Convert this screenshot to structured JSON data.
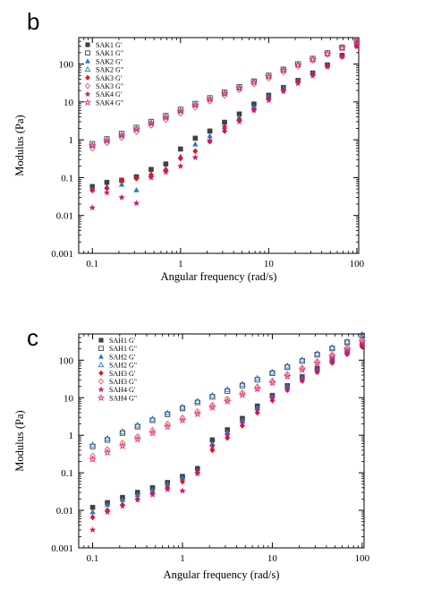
{
  "chart_data": [
    {
      "type": "scatter",
      "panel_label": "b",
      "xlabel": "Angular frequency (rad/s)",
      "ylabel": "Modulus (Pa)",
      "xscale": "log",
      "yscale": "log",
      "xlim": [
        0.07,
        105
      ],
      "ylim": [
        0.001,
        500
      ],
      "xticks": [
        0.1,
        1,
        10,
        100
      ],
      "xtick_labels": [
        "0.1",
        "1",
        "10",
        "100"
      ],
      "yticks": [
        0.001,
        0.01,
        0.1,
        1,
        10,
        100
      ],
      "ytick_labels": [
        "0.001",
        "0.01",
        "0.1",
        "1",
        "10",
        "100"
      ],
      "grid": false,
      "legend_position": "top-left",
      "series": [
        {
          "name": "SAK1 G'",
          "marker": "square-filled",
          "color": "#404040",
          "x": [
            0.1,
            0.146,
            0.215,
            0.316,
            0.464,
            0.681,
            1.0,
            1.47,
            2.15,
            3.16,
            4.64,
            6.81,
            10,
            14.7,
            21.5,
            31.6,
            46.4,
            68.1,
            100
          ],
          "y": [
            0.058,
            0.075,
            0.085,
            0.105,
            0.165,
            0.23,
            0.57,
            1.1,
            1.7,
            2.9,
            4.8,
            8.8,
            15,
            24,
            37,
            58,
            95,
            170,
            320
          ]
        },
        {
          "name": "SAK1 G\"",
          "marker": "square-open",
          "color": "#404040",
          "x": [
            0.1,
            0.146,
            0.215,
            0.316,
            0.464,
            0.681,
            1.0,
            1.47,
            2.15,
            3.16,
            4.64,
            6.81,
            10,
            14.7,
            21.5,
            31.6,
            46.4,
            68.1,
            100
          ],
          "y": [
            0.78,
            1.05,
            1.45,
            2.1,
            3.0,
            4.3,
            6.3,
            9.0,
            12.7,
            18,
            25,
            35,
            50,
            72,
            100,
            140,
            195,
            275,
            400
          ]
        },
        {
          "name": "SAK2 G'",
          "marker": "triangle-filled",
          "color": "#2477c9",
          "x": [
            0.1,
            0.146,
            0.215,
            0.316,
            0.464,
            0.681,
            1.0,
            1.47,
            2.15,
            3.16,
            4.64,
            6.81,
            10,
            14.7,
            21.5,
            31.6,
            46.4,
            68.1,
            100
          ],
          "y": [
            0.05,
            0.058,
            0.066,
            0.047,
            0.12,
            0.17,
            0.36,
            0.76,
            1.25,
            2.2,
            3.9,
            7.5,
            14,
            23,
            36,
            57,
            94,
            168,
            315
          ]
        },
        {
          "name": "SAK2 G\"",
          "marker": "triangle-open",
          "color": "#2477c9",
          "x": [
            0.1,
            0.146,
            0.215,
            0.316,
            0.464,
            0.681,
            1.0,
            1.47,
            2.15,
            3.16,
            4.64,
            6.81,
            10,
            14.7,
            21.5,
            31.6,
            46.4,
            68.1,
            100
          ],
          "y": [
            0.72,
            0.98,
            1.35,
            1.95,
            2.8,
            4.0,
            5.9,
            8.5,
            12,
            17,
            24,
            34,
            48,
            70,
            97,
            135,
            190,
            268,
            390
          ]
        },
        {
          "name": "SAK3 G'",
          "marker": "diamond-filled",
          "color": "#e8101c",
          "x": [
            0.1,
            0.146,
            0.215,
            0.316,
            0.464,
            0.681,
            1.0,
            1.47,
            2.15,
            3.16,
            4.64,
            6.81,
            10,
            14.7,
            21.5,
            31.6,
            46.4,
            68.1,
            100
          ],
          "y": [
            0.046,
            0.052,
            0.085,
            0.095,
            0.12,
            0.16,
            0.32,
            0.5,
            0.9,
            1.7,
            3.3,
            6.2,
            12,
            20,
            33,
            52,
            88,
            160,
            300
          ]
        },
        {
          "name": "SAK3 G\"",
          "marker": "diamond-open",
          "color": "#e05a4a",
          "x": [
            0.1,
            0.146,
            0.215,
            0.316,
            0.464,
            0.681,
            1.0,
            1.47,
            2.15,
            3.16,
            4.64,
            6.81,
            10,
            14.7,
            21.5,
            31.6,
            46.4,
            68.1,
            100
          ],
          "y": [
            0.6,
            0.83,
            1.15,
            1.65,
            2.4,
            3.4,
            5.0,
            7.2,
            10.5,
            15,
            21,
            30,
            43,
            62,
            88,
            125,
            180,
            270,
            420
          ]
        },
        {
          "name": "SAK4 G'",
          "marker": "star-filled",
          "color": "#d01870",
          "x": [
            0.1,
            0.146,
            0.215,
            0.316,
            0.464,
            0.681,
            1.0,
            1.47,
            2.15,
            3.16,
            4.64,
            6.81,
            10,
            14.7,
            21.5,
            31.6,
            46.4,
            68.1,
            100
          ],
          "y": [
            0.016,
            0.04,
            0.03,
            0.021,
            0.1,
            0.14,
            0.2,
            0.34,
            0.95,
            2.2,
            3.0,
            6.0,
            11,
            19,
            31,
            49,
            85,
            155,
            290
          ]
        },
        {
          "name": "SAK4 G\"",
          "marker": "star-open",
          "color": "#e2338a",
          "x": [
            0.1,
            0.146,
            0.215,
            0.316,
            0.464,
            0.681,
            1.0,
            1.47,
            2.15,
            3.16,
            4.64,
            6.81,
            10,
            14.7,
            21.5,
            31.6,
            46.4,
            68.1,
            100
          ],
          "y": [
            0.7,
            0.95,
            1.3,
            1.9,
            2.7,
            3.9,
            5.7,
            8.2,
            11.7,
            16.5,
            23,
            33,
            47,
            68,
            95,
            132,
            188,
            265,
            380
          ]
        }
      ]
    },
    {
      "type": "scatter",
      "panel_label": "c",
      "xlabel": "Angular frequency (rad/s)",
      "ylabel": "Modulus (Pa)",
      "xscale": "log",
      "yscale": "log",
      "xlim": [
        0.07,
        105
      ],
      "ylim": [
        0.001,
        500
      ],
      "xticks": [
        0.1,
        1,
        10,
        100
      ],
      "xtick_labels": [
        "0.1",
        "1",
        "10",
        "100"
      ],
      "yticks": [
        0.001,
        0.01,
        0.1,
        1,
        10,
        100
      ],
      "ytick_labels": [
        "0.001",
        "0.01",
        "0.1",
        "1",
        "10",
        "100"
      ],
      "grid": false,
      "legend_position": "top-left",
      "series": [
        {
          "name": "SAH1 G'",
          "marker": "square-filled",
          "color": "#404040",
          "x": [
            0.1,
            0.146,
            0.215,
            0.316,
            0.464,
            0.681,
            1.0,
            1.47,
            2.15,
            3.16,
            4.64,
            6.81,
            10,
            14.7,
            21.5,
            31.6,
            46.4,
            68.1,
            100
          ],
          "y": [
            0.012,
            0.016,
            0.022,
            0.03,
            0.04,
            0.055,
            0.08,
            0.13,
            0.75,
            1.4,
            2.8,
            6.0,
            11.5,
            21,
            36,
            60,
            105,
            170,
            260
          ]
        },
        {
          "name": "SAH1 G\"",
          "marker": "square-open",
          "color": "#404040",
          "x": [
            0.1,
            0.146,
            0.215,
            0.316,
            0.464,
            0.681,
            1.0,
            1.47,
            2.15,
            3.16,
            4.64,
            6.81,
            10,
            14.7,
            21.5,
            31.6,
            46.4,
            68.1,
            100
          ],
          "y": [
            0.5,
            0.75,
            1.15,
            1.7,
            2.5,
            3.6,
            5.2,
            7.5,
            10.5,
            15,
            21,
            30,
            45,
            65,
            95,
            140,
            205,
            300,
            450
          ]
        },
        {
          "name": "SAH2 G'",
          "marker": "triangle-filled",
          "color": "#2477c9",
          "x": [
            0.1,
            0.146,
            0.215,
            0.316,
            0.464,
            0.681,
            1.0,
            1.47,
            2.15,
            3.16,
            4.64,
            6.81,
            10,
            14.7,
            21.5,
            31.6,
            46.4,
            68.1,
            100
          ],
          "y": [
            0.009,
            0.014,
            0.019,
            0.026,
            0.035,
            0.05,
            0.072,
            0.11,
            0.6,
            1.2,
            2.5,
            5.5,
            11,
            20,
            34,
            57,
            100,
            165,
            255
          ]
        },
        {
          "name": "SAH2 G\"",
          "marker": "triangle-open",
          "color": "#2477c9",
          "x": [
            0.1,
            0.146,
            0.215,
            0.316,
            0.464,
            0.681,
            1.0,
            1.47,
            2.15,
            3.16,
            4.64,
            6.81,
            10,
            14.7,
            21.5,
            31.6,
            46.4,
            68.1,
            100
          ],
          "y": [
            0.55,
            0.82,
            1.25,
            1.85,
            2.7,
            3.9,
            5.6,
            8.0,
            11.5,
            16.5,
            23,
            33,
            48,
            70,
            102,
            150,
            215,
            310,
            480
          ]
        },
        {
          "name": "SAH3 G'",
          "marker": "diamond-filled",
          "color": "#e8101c",
          "x": [
            0.1,
            0.146,
            0.215,
            0.316,
            0.464,
            0.681,
            1.0,
            1.47,
            2.15,
            3.16,
            4.64,
            6.81,
            10,
            14.7,
            21.5,
            31.6,
            46.4,
            68.1,
            100
          ],
          "y": [
            0.0065,
            0.01,
            0.014,
            0.02,
            0.028,
            0.04,
            0.058,
            0.1,
            0.4,
            0.85,
            1.8,
            4.0,
            8.5,
            16,
            28,
            48,
            85,
            145,
            230
          ]
        },
        {
          "name": "SAH3 G\"",
          "marker": "diamond-open",
          "color": "#e05a4a",
          "x": [
            0.1,
            0.146,
            0.215,
            0.316,
            0.464,
            0.681,
            1.0,
            1.47,
            2.15,
            3.16,
            4.64,
            6.81,
            10,
            14.7,
            21.5,
            31.6,
            46.4,
            68.1,
            100
          ],
          "y": [
            0.28,
            0.42,
            0.62,
            0.92,
            1.35,
            2.0,
            2.9,
            4.3,
            6.3,
            9.2,
            13.5,
            19.5,
            28,
            42,
            62,
            92,
            140,
            220,
            350
          ]
        },
        {
          "name": "SAH4 G'",
          "marker": "star-filled",
          "color": "#d01870",
          "x": [
            0.1,
            0.146,
            0.215,
            0.316,
            0.464,
            0.681,
            1.0,
            1.47,
            2.15,
            3.16,
            4.64,
            6.81,
            10,
            14.7,
            21.5,
            31.6,
            46.4,
            68.1,
            100
          ],
          "y": [
            0.003,
            0.009,
            0.013,
            0.019,
            0.026,
            0.036,
            0.033,
            0.095,
            0.5,
            1.0,
            2.1,
            4.6,
            9.5,
            17,
            30,
            51,
            90,
            150,
            240
          ]
        },
        {
          "name": "SAH4 G\"",
          "marker": "star-open",
          "color": "#e2338a",
          "x": [
            0.1,
            0.146,
            0.215,
            0.316,
            0.464,
            0.681,
            1.0,
            1.47,
            2.15,
            3.16,
            4.64,
            6.81,
            10,
            14.7,
            21.5,
            31.6,
            46.4,
            68.1,
            100
          ],
          "y": [
            0.23,
            0.35,
            0.52,
            0.78,
            1.15,
            1.7,
            2.5,
            3.7,
            5.5,
            8.0,
            11.8,
            17,
            25,
            37,
            55,
            82,
            125,
            195,
            310
          ]
        }
      ]
    }
  ]
}
